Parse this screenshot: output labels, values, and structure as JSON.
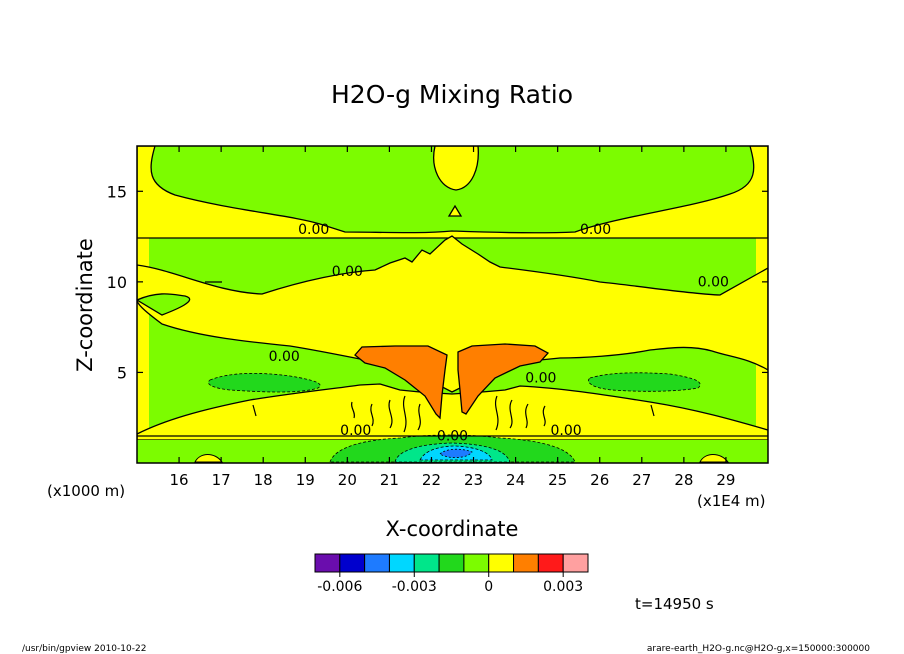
{
  "chart_data": {
    "type": "heatmap",
    "title": "H2O-g Mixing Ratio",
    "xlabel": "X-coordinate",
    "ylabel": "Z-coordinate",
    "x_unit_note": "(x1E4 m)",
    "z_unit_note": "(x1000 m)",
    "x_ticks": [
      "16",
      "17",
      "18",
      "19",
      "20",
      "21",
      "22",
      "23",
      "24",
      "25",
      "26",
      "27",
      "28",
      "29"
    ],
    "x_tick_values": [
      16,
      17,
      18,
      19,
      20,
      21,
      22,
      23,
      24,
      25,
      26,
      27,
      28,
      29
    ],
    "xlim": [
      15,
      30
    ],
    "y_ticks": [
      "5",
      "10",
      "15"
    ],
    "y_tick_values": [
      5,
      10,
      15
    ],
    "ylim": [
      0,
      17.5
    ],
    "contour_labels": [
      {
        "text": "0.00",
        "x": 19.2,
        "z": 12.8
      },
      {
        "text": "0.00",
        "x": 25.9,
        "z": 12.8
      },
      {
        "text": "0.00",
        "x": 20.0,
        "z": 10.5
      },
      {
        "text": "0.00",
        "x": 28.7,
        "z": 9.9
      },
      {
        "text": "0.00",
        "x": 18.5,
        "z": 5.8
      },
      {
        "text": "0.00",
        "x": 24.6,
        "z": 4.6
      },
      {
        "text": "0.00",
        "x": 20.2,
        "z": 1.7
      },
      {
        "text": "0.00",
        "x": 22.5,
        "z": 1.4
      },
      {
        "text": "0.00",
        "x": 25.2,
        "z": 1.7
      }
    ],
    "colorbar": {
      "colors": [
        "#6a0dad",
        "#0000cd",
        "#1e7bff",
        "#00d7ff",
        "#00e68a",
        "#22d81c",
        "#7cfc00",
        "#ffff00",
        "#ff7f00",
        "#ff1a1a",
        "#ffa0a0"
      ],
      "labels": [
        "-0.006",
        "-0.003",
        "0",
        "0.003"
      ]
    },
    "time_label": "t=14950 s"
  },
  "footer": {
    "left": "/usr/bin/gpview  2010-10-22",
    "right": "arare-earth_H2O-g.nc@H2O-g,x=150000:300000"
  }
}
